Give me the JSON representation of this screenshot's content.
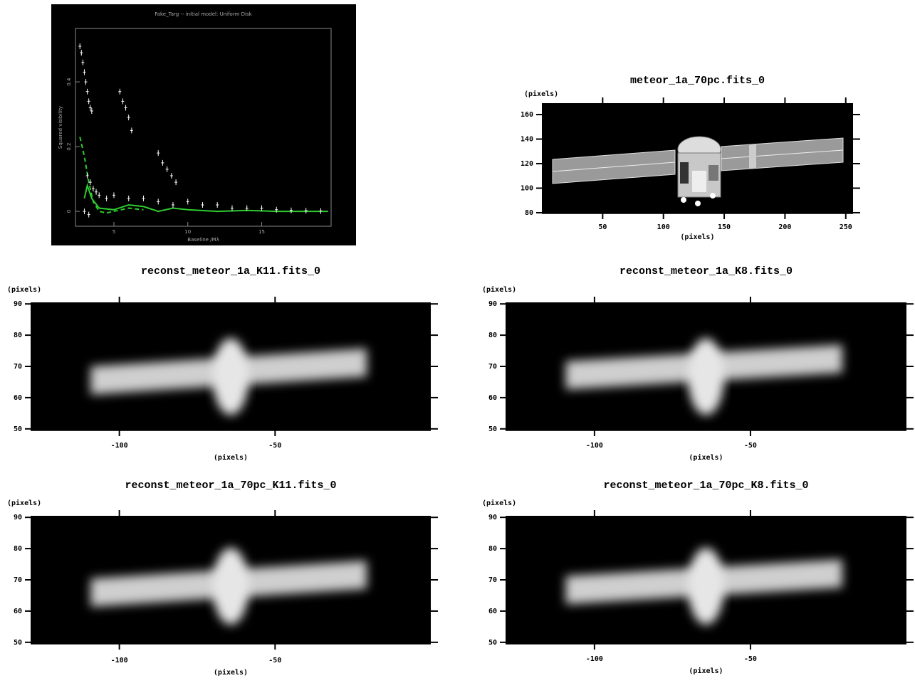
{
  "chart_data": [
    {
      "type": "scatter",
      "title": "Fake_Targ -- initial model: Uniform Disk",
      "xlabel": "Baseline /Mλ",
      "ylabel": "Squared visibility",
      "xlim": [
        2.4,
        19.7
      ],
      "ylim": [
        -0.046,
        0.565
      ],
      "xticks": [
        5,
        10,
        15
      ],
      "yticks": [
        0,
        0.2,
        0.4
      ],
      "color": "#ffffff",
      "x": [
        2.7,
        2.8,
        2.9,
        3.0,
        3.1,
        3.2,
        3.3,
        3.4,
        3.5,
        5.4,
        5.6,
        5.8,
        6.0,
        6.2,
        8.0,
        8.3,
        8.6,
        8.9,
        9.2,
        3.2,
        3.4,
        3.6,
        3.8,
        4.0,
        4.5,
        5.0,
        6.0,
        7.0,
        8.0,
        9.0,
        10.0,
        11.0,
        12.0,
        13.0,
        14.0,
        15.0,
        16.0,
        17.0,
        18.0,
        19.0,
        3.0,
        3.3
      ],
      "values": [
        0.51,
        0.49,
        0.46,
        0.43,
        0.4,
        0.37,
        0.34,
        0.32,
        0.31,
        0.37,
        0.34,
        0.32,
        0.29,
        0.25,
        0.18,
        0.15,
        0.13,
        0.11,
        0.09,
        0.11,
        0.09,
        0.07,
        0.06,
        0.05,
        0.04,
        0.05,
        0.04,
        0.04,
        0.03,
        0.02,
        0.03,
        0.02,
        0.02,
        0.01,
        0.01,
        0.01,
        0.005,
        0.003,
        0.002,
        0.001,
        0.0,
        -0.01
      ],
      "series": [
        {
          "color": "#2ecc2e",
          "style": "dashed",
          "x": [
            2.7,
            3.0,
            3.3,
            3.6,
            4.0,
            4.5,
            5.0,
            6.0,
            7.0
          ],
          "values": [
            0.23,
            0.17,
            0.09,
            0.03,
            0.0,
            -0.005,
            0.0,
            0.01,
            0.005
          ]
        },
        {
          "color": "#2ecc2e",
          "style": "solid",
          "x": [
            3.0,
            3.2,
            3.5,
            4.0,
            5.0,
            6.0,
            7.0,
            8.0,
            9.0,
            10.0,
            12.0,
            14.0,
            16.0,
            19.5
          ],
          "values": [
            0.04,
            0.08,
            0.04,
            0.01,
            0.005,
            0.02,
            0.015,
            0.0,
            0.01,
            0.005,
            0.0,
            0.003,
            0.0,
            0.0
          ]
        }
      ]
    },
    {
      "type": "image",
      "title": "meteor_1a_70pc.fits_0",
      "xlabel": "(pixels)",
      "ylabel": "(pixels)",
      "xlim": [
        0,
        256
      ],
      "ylim": [
        79.4,
        169.3
      ],
      "xticks": [
        50,
        100,
        150,
        200,
        250
      ],
      "yticks": [
        80,
        100,
        120,
        140,
        160
      ]
    },
    {
      "type": "image",
      "title": "reconst_meteor_1a_K11.fits_0",
      "xlabel": "(pixels)",
      "ylabel": "(pixels)",
      "xlim": [
        -128.5,
        0
      ],
      "ylim": [
        49.5,
        90.5
      ],
      "xticks": [
        -100,
        -50
      ],
      "yticks": [
        90,
        80,
        70,
        60,
        50
      ]
    },
    {
      "type": "image",
      "title": "reconst_meteor_1a_K8.fits_0",
      "xlabel": "(pixels)",
      "ylabel": "(pixels)",
      "xlim": [
        -128.5,
        0
      ],
      "ylim": [
        49.5,
        90.5
      ],
      "xticks": [
        -100,
        -50
      ],
      "yticks": [
        90,
        80,
        70,
        60,
        50
      ]
    },
    {
      "type": "image",
      "title": "reconst_meteor_1a_70pc_K11.fits_0",
      "xlabel": "(pixels)",
      "ylabel": "(pixels)",
      "xlim": [
        -128.5,
        0
      ],
      "ylim": [
        49.5,
        90.5
      ],
      "xticks": [
        -100,
        -50
      ],
      "yticks": [
        90,
        80,
        70,
        60,
        50
      ]
    },
    {
      "type": "image",
      "title": "reconst_meteor_1a_70pc_K8.fits_0",
      "xlabel": "(pixels)",
      "ylabel": "(pixels)",
      "xlim": [
        -128.5,
        0
      ],
      "ylim": [
        49.5,
        90.5
      ],
      "xticks": [
        -100,
        -50
      ],
      "yticks": [
        90,
        80,
        70,
        60,
        50
      ]
    }
  ]
}
